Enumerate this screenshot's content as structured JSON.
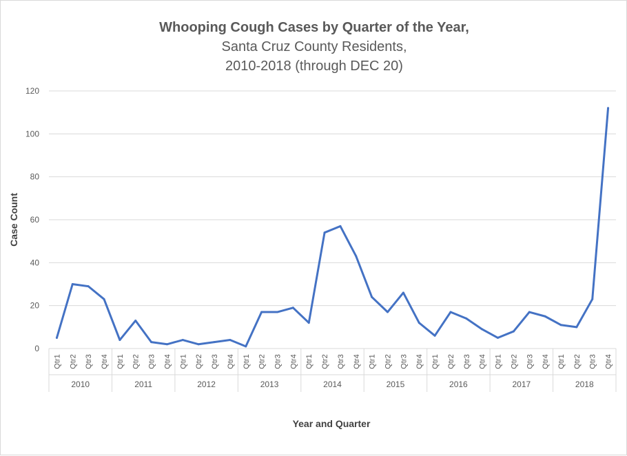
{
  "chart_data": {
    "type": "line",
    "title": "Whooping Cough Cases by Quarter of the Year,",
    "subtitle_line1": "Santa Cruz County Residents,",
    "subtitle_line2": "2010-2018 (through DEC 20)",
    "xlabel": "Year and Quarter",
    "ylabel": "Case Count",
    "ylim": [
      0,
      120
    ],
    "yticks": [
      0,
      20,
      40,
      60,
      80,
      100,
      120
    ],
    "years": [
      "2010",
      "2011",
      "2012",
      "2013",
      "2014",
      "2015",
      "2016",
      "2017",
      "2018"
    ],
    "quarters": [
      "Qtr1",
      "Qtr2",
      "Qtr3",
      "Qtr4"
    ],
    "grid": true,
    "color": "#4472C4",
    "series": [
      {
        "name": "Cases",
        "values": [
          5,
          30,
          29,
          23,
          4,
          13,
          3,
          2,
          4,
          2,
          3,
          4,
          1,
          17,
          17,
          19,
          12,
          54,
          57,
          43,
          24,
          17,
          26,
          12,
          6,
          17,
          14,
          9,
          5,
          8,
          17,
          15,
          11,
          10,
          23,
          112
        ]
      }
    ]
  }
}
